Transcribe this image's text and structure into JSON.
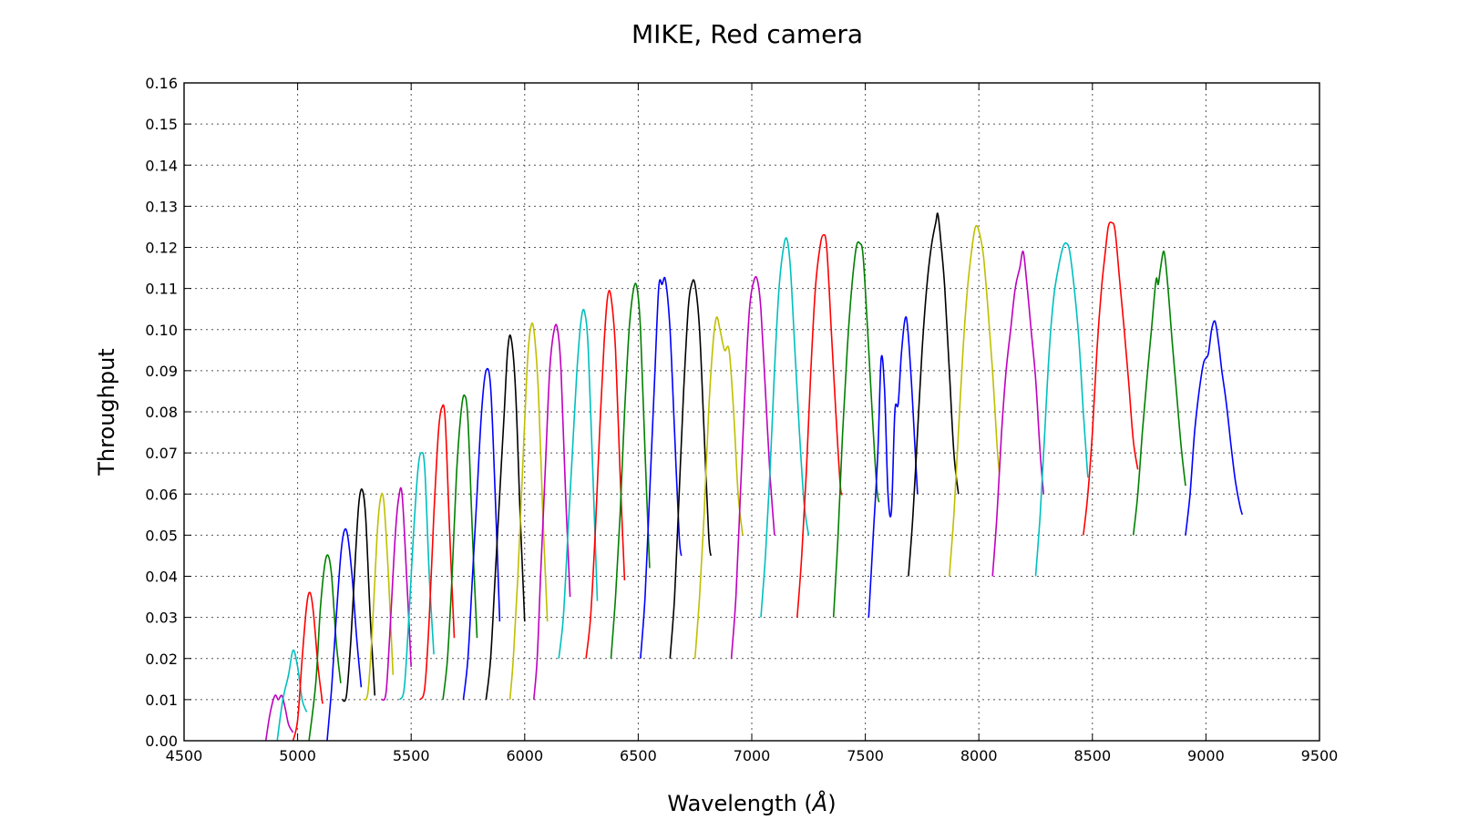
{
  "chart_data": {
    "type": "line",
    "title": "MIKE, Red camera",
    "xlabel": "Wavelength",
    "xlabel_unit": "Å",
    "ylabel": "Throughput",
    "xlim": [
      4500,
      9500
    ],
    "ylim": [
      0,
      0.16
    ],
    "xticks": [
      4500,
      5000,
      5500,
      6000,
      6500,
      7000,
      7500,
      8000,
      8500,
      9000,
      9500
    ],
    "yticks": [
      0.0,
      0.01,
      0.02,
      0.03,
      0.04,
      0.05,
      0.06,
      0.07,
      0.08,
      0.09,
      0.1,
      0.11,
      0.12,
      0.13,
      0.14,
      0.15,
      0.16
    ],
    "grid": true,
    "colors": {
      "m": "#bf00bf",
      "c": "#00bfbf",
      "r": "#ff0000",
      "g": "#008000",
      "b": "#0000ff",
      "k": "#000000",
      "y": "#bfbf00"
    },
    "series": [
      {
        "color": "m",
        "x": [
          4860,
          4880,
          4900,
          4915,
          4930,
          4945,
          4960,
          4980
        ],
        "y": [
          0.0,
          0.007,
          0.011,
          0.01,
          0.011,
          0.008,
          0.004,
          0.002
        ]
      },
      {
        "color": "c",
        "x": [
          4910,
          4935,
          4960,
          4980,
          5000,
          5020,
          5040
        ],
        "y": [
          0.0,
          0.01,
          0.016,
          0.022,
          0.018,
          0.01,
          0.007
        ]
      },
      {
        "color": "r",
        "x": [
          4980,
          5000,
          5020,
          5040,
          5055,
          5070,
          5090,
          5110
        ],
        "y": [
          0.0,
          0.005,
          0.02,
          0.033,
          0.036,
          0.031,
          0.018,
          0.009
        ]
      },
      {
        "color": "g",
        "x": [
          5050,
          5080,
          5100,
          5120,
          5135,
          5150,
          5170,
          5190
        ],
        "y": [
          0.0,
          0.014,
          0.032,
          0.043,
          0.045,
          0.04,
          0.024,
          0.014
        ]
      },
      {
        "color": "b",
        "x": [
          5130,
          5150,
          5170,
          5190,
          5205,
          5220,
          5240,
          5260,
          5280
        ],
        "y": [
          0.0,
          0.013,
          0.03,
          0.045,
          0.051,
          0.05,
          0.04,
          0.025,
          0.013
        ]
      },
      {
        "color": "k",
        "x": [
          5195,
          5215,
          5235,
          5255,
          5270,
          5285,
          5300,
          5320,
          5340
        ],
        "y": [
          0.01,
          0.011,
          0.025,
          0.045,
          0.058,
          0.061,
          0.054,
          0.03,
          0.011
        ]
      },
      {
        "color": "y",
        "x": [
          5290,
          5310,
          5330,
          5350,
          5365,
          5380,
          5400,
          5420
        ],
        "y": [
          0.01,
          0.012,
          0.028,
          0.05,
          0.059,
          0.058,
          0.04,
          0.016
        ]
      },
      {
        "color": "m",
        "x": [
          5370,
          5390,
          5410,
          5430,
          5445,
          5460,
          5480,
          5500
        ],
        "y": [
          0.01,
          0.012,
          0.03,
          0.05,
          0.059,
          0.06,
          0.04,
          0.018
        ]
      },
      {
        "color": "c",
        "x": [
          5450,
          5470,
          5490,
          5510,
          5530,
          5545,
          5560,
          5580,
          5600
        ],
        "y": [
          0.01,
          0.013,
          0.03,
          0.05,
          0.066,
          0.07,
          0.066,
          0.04,
          0.021
        ]
      },
      {
        "color": "r",
        "x": [
          5540,
          5560,
          5580,
          5600,
          5620,
          5635,
          5650,
          5670,
          5690
        ],
        "y": [
          0.01,
          0.013,
          0.03,
          0.055,
          0.075,
          0.081,
          0.078,
          0.05,
          0.025
        ]
      },
      {
        "color": "g",
        "x": [
          5640,
          5660,
          5680,
          5700,
          5720,
          5735,
          5750,
          5770,
          5790
        ],
        "y": [
          0.01,
          0.02,
          0.04,
          0.065,
          0.08,
          0.084,
          0.078,
          0.05,
          0.025
        ]
      },
      {
        "color": "b",
        "x": [
          5730,
          5750,
          5770,
          5790,
          5810,
          5830,
          5850,
          5870,
          5890
        ],
        "y": [
          0.01,
          0.02,
          0.04,
          0.06,
          0.08,
          0.09,
          0.086,
          0.06,
          0.029
        ]
      },
      {
        "color": "k",
        "x": [
          5830,
          5850,
          5870,
          5890,
          5910,
          5925,
          5940,
          5960,
          5980,
          6000
        ],
        "y": [
          0.01,
          0.02,
          0.04,
          0.06,
          0.08,
          0.095,
          0.098,
          0.085,
          0.055,
          0.029
        ]
      },
      {
        "color": "y",
        "x": [
          5935,
          5950,
          5970,
          5990,
          6010,
          6025,
          6040,
          6060,
          6080,
          6100
        ],
        "y": [
          0.01,
          0.02,
          0.04,
          0.065,
          0.09,
          0.1,
          0.1,
          0.085,
          0.055,
          0.029
        ]
      },
      {
        "color": "m",
        "x": [
          6040,
          6055,
          6070,
          6090,
          6110,
          6130,
          6145,
          6160,
          6180,
          6200
        ],
        "y": [
          0.01,
          0.02,
          0.04,
          0.065,
          0.09,
          0.1,
          0.1,
          0.09,
          0.06,
          0.035
        ]
      },
      {
        "color": "c",
        "x": [
          6150,
          6170,
          6190,
          6210,
          6230,
          6250,
          6265,
          6280,
          6300,
          6320
        ],
        "y": [
          0.02,
          0.03,
          0.05,
          0.07,
          0.09,
          0.103,
          0.104,
          0.095,
          0.065,
          0.034
        ]
      },
      {
        "color": "r",
        "x": [
          6270,
          6290,
          6310,
          6330,
          6350,
          6365,
          6380,
          6400,
          6420,
          6440
        ],
        "y": [
          0.02,
          0.03,
          0.05,
          0.075,
          0.097,
          0.108,
          0.108,
          0.095,
          0.065,
          0.039
        ]
      },
      {
        "color": "g",
        "x": [
          6380,
          6400,
          6420,
          6440,
          6460,
          6480,
          6495,
          6510,
          6530,
          6550
        ],
        "y": [
          0.02,
          0.035,
          0.055,
          0.08,
          0.1,
          0.11,
          0.11,
          0.1,
          0.07,
          0.042
        ]
      },
      {
        "color": "b",
        "x": [
          6510,
          6530,
          6550,
          6570,
          6590,
          6605,
          6620,
          6640,
          6660,
          6680,
          6690
        ],
        "y": [
          0.02,
          0.035,
          0.06,
          0.085,
          0.11,
          0.111,
          0.112,
          0.1,
          0.075,
          0.05,
          0.045
        ]
      },
      {
        "color": "k",
        "x": [
          6640,
          6660,
          6680,
          6700,
          6720,
          6735,
          6750,
          6770,
          6790,
          6810,
          6820
        ],
        "y": [
          0.02,
          0.035,
          0.06,
          0.085,
          0.105,
          0.111,
          0.111,
          0.1,
          0.075,
          0.05,
          0.045
        ]
      },
      {
        "color": "y",
        "x": [
          6750,
          6770,
          6790,
          6810,
          6830,
          6845,
          6860,
          6880,
          6900,
          6920,
          6940,
          6960
        ],
        "y": [
          0.02,
          0.035,
          0.055,
          0.08,
          0.097,
          0.103,
          0.1,
          0.095,
          0.095,
          0.08,
          0.06,
          0.05
        ]
      },
      {
        "color": "m",
        "x": [
          6910,
          6930,
          6950,
          6970,
          6990,
          7010,
          7025,
          7040,
          7060,
          7080,
          7100
        ],
        "y": [
          0.02,
          0.035,
          0.06,
          0.085,
          0.105,
          0.112,
          0.112,
          0.105,
          0.085,
          0.065,
          0.05
        ]
      },
      {
        "color": "c",
        "x": [
          7040,
          7060,
          7080,
          7100,
          7120,
          7140,
          7155,
          7170,
          7190,
          7210,
          7230,
          7250
        ],
        "y": [
          0.03,
          0.045,
          0.065,
          0.09,
          0.11,
          0.12,
          0.122,
          0.115,
          0.095,
          0.075,
          0.058,
          0.05
        ]
      },
      {
        "color": "r",
        "x": [
          7200,
          7220,
          7240,
          7260,
          7280,
          7300,
          7315,
          7330,
          7350,
          7370,
          7390,
          7400
        ],
        "y": [
          0.03,
          0.045,
          0.065,
          0.09,
          0.11,
          0.12,
          0.123,
          0.12,
          0.1,
          0.08,
          0.062,
          0.06
        ]
      },
      {
        "color": "g",
        "x": [
          7360,
          7380,
          7400,
          7420,
          7440,
          7460,
          7475,
          7490,
          7510,
          7530,
          7550,
          7560
        ],
        "y": [
          0.03,
          0.05,
          0.075,
          0.095,
          0.11,
          0.12,
          0.121,
          0.118,
          0.1,
          0.08,
          0.062,
          0.058
        ]
      },
      {
        "color": "b",
        "x": [
          7515,
          7535,
          7555,
          7570,
          7585,
          7600,
          7615,
          7630,
          7645,
          7660,
          7680,
          7700,
          7720,
          7730
        ],
        "y": [
          0.03,
          0.05,
          0.07,
          0.093,
          0.085,
          0.06,
          0.056,
          0.08,
          0.082,
          0.095,
          0.103,
          0.09,
          0.07,
          0.06
        ]
      },
      {
        "color": "k",
        "x": [
          7690,
          7710,
          7730,
          7750,
          7770,
          7790,
          7810,
          7820,
          7835,
          7850,
          7870,
          7890,
          7910
        ],
        "y": [
          0.04,
          0.055,
          0.075,
          0.095,
          0.11,
          0.12,
          0.126,
          0.128,
          0.12,
          0.11,
          0.09,
          0.07,
          0.06
        ]
      },
      {
        "color": "y",
        "x": [
          7870,
          7890,
          7910,
          7930,
          7950,
          7970,
          7985,
          8000,
          8020,
          8040,
          8060,
          8080,
          8090
        ],
        "y": [
          0.04,
          0.055,
          0.075,
          0.095,
          0.11,
          0.12,
          0.125,
          0.124,
          0.118,
          0.105,
          0.09,
          0.072,
          0.065
        ]
      },
      {
        "color": "m",
        "x": [
          8060,
          8080,
          8100,
          8120,
          8140,
          8160,
          8180,
          8195,
          8210,
          8230,
          8250,
          8270,
          8285
        ],
        "y": [
          0.04,
          0.055,
          0.075,
          0.09,
          0.1,
          0.11,
          0.115,
          0.119,
          0.112,
          0.1,
          0.088,
          0.07,
          0.06
        ]
      },
      {
        "color": "c",
        "x": [
          8250,
          8270,
          8290,
          8310,
          8330,
          8350,
          8370,
          8385,
          8400,
          8420,
          8440,
          8460,
          8480
        ],
        "y": [
          0.04,
          0.055,
          0.075,
          0.095,
          0.108,
          0.115,
          0.12,
          0.121,
          0.119,
          0.11,
          0.098,
          0.08,
          0.064
        ]
      },
      {
        "color": "r",
        "x": [
          8460,
          8480,
          8500,
          8520,
          8540,
          8555,
          8570,
          8585,
          8600,
          8620,
          8640,
          8660,
          8680,
          8700
        ],
        "y": [
          0.05,
          0.06,
          0.075,
          0.095,
          0.11,
          0.118,
          0.125,
          0.126,
          0.124,
          0.112,
          0.1,
          0.087,
          0.073,
          0.066
        ]
      },
      {
        "color": "g",
        "x": [
          8680,
          8700,
          8720,
          8740,
          8760,
          8780,
          8790,
          8800,
          8815,
          8830,
          8850,
          8870,
          8890,
          8910
        ],
        "y": [
          0.05,
          0.06,
          0.075,
          0.088,
          0.1,
          0.112,
          0.111,
          0.115,
          0.119,
          0.112,
          0.098,
          0.085,
          0.072,
          0.062
        ]
      },
      {
        "color": "b",
        "x": [
          8910,
          8930,
          8950,
          8970,
          8990,
          9010,
          9025,
          9040,
          9055,
          9070,
          9090,
          9110,
          9130,
          9150,
          9160
        ],
        "y": [
          0.05,
          0.06,
          0.075,
          0.085,
          0.092,
          0.094,
          0.1,
          0.102,
          0.097,
          0.09,
          0.082,
          0.072,
          0.063,
          0.057,
          0.055
        ]
      }
    ]
  }
}
